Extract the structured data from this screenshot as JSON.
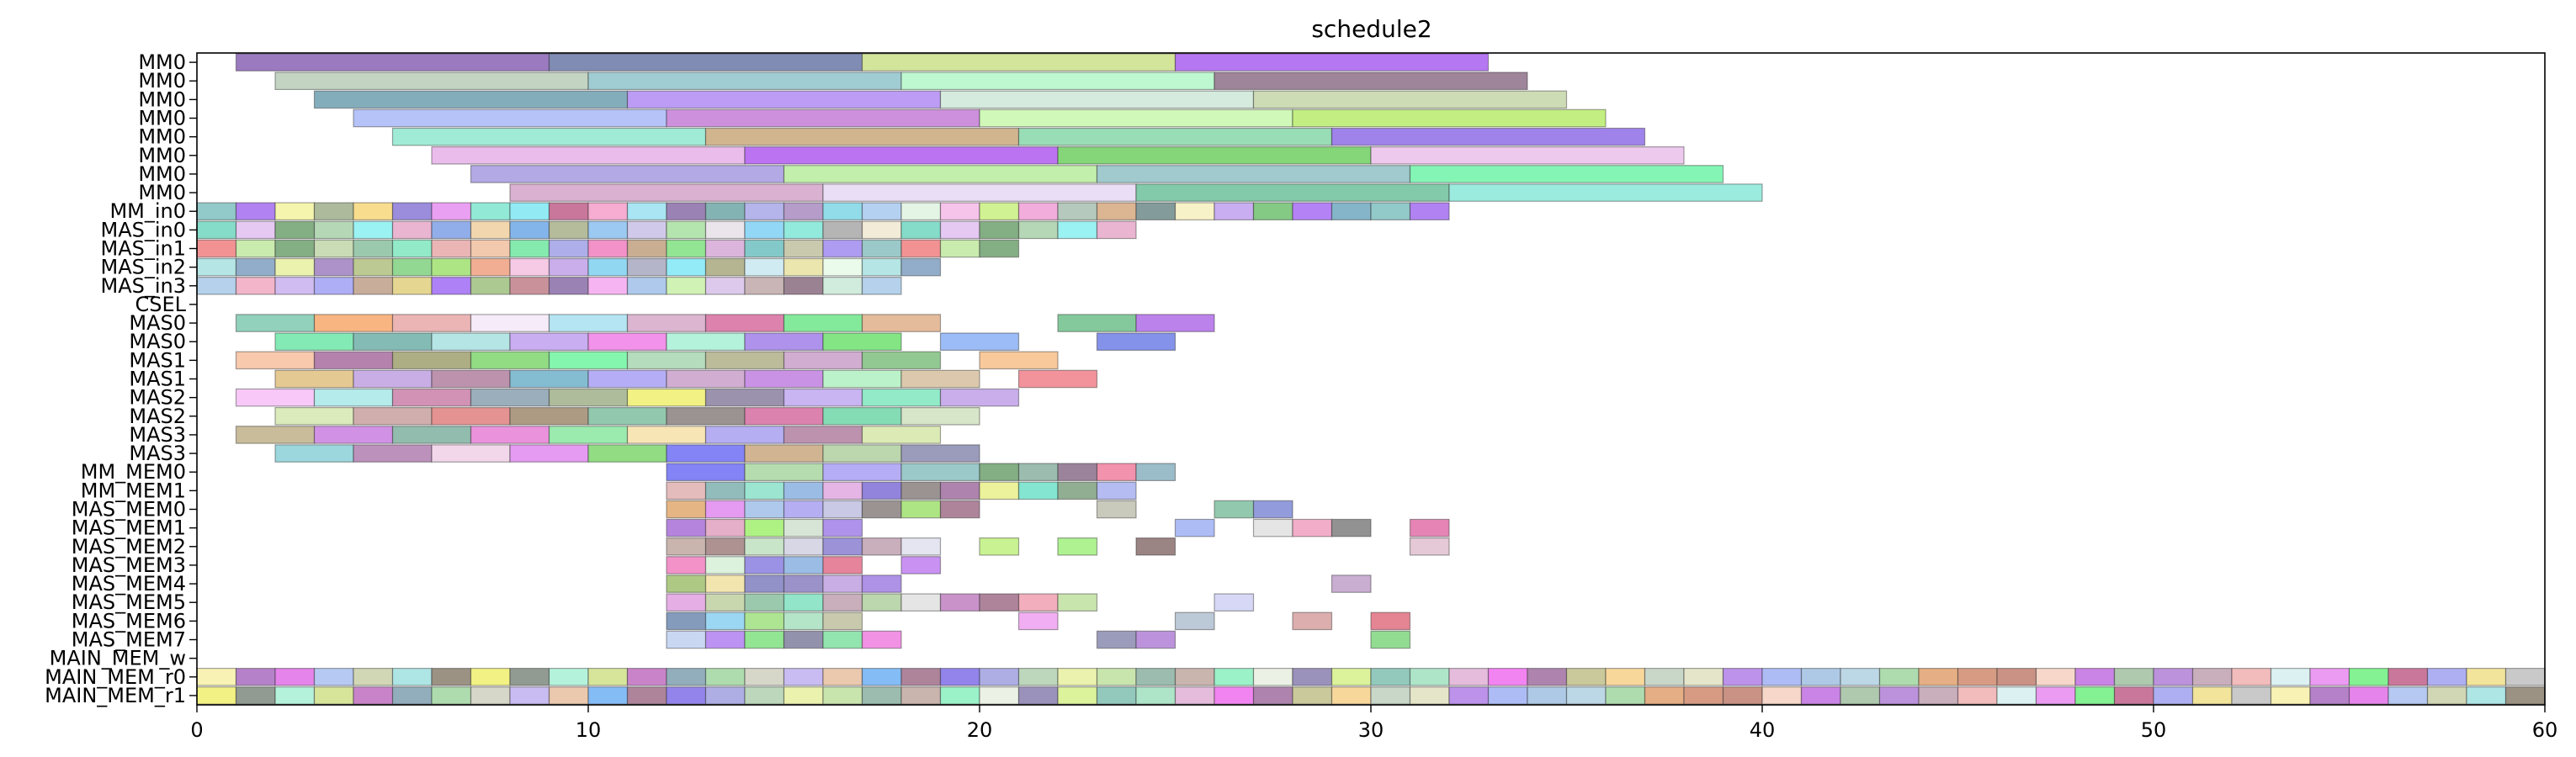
{
  "chart_data": {
    "type": "gantt",
    "title": "schedule2",
    "xlabel": "",
    "ylabel": "",
    "xlim": [
      0,
      60
    ],
    "x_ticks": [
      0,
      10,
      20,
      30,
      40,
      50,
      60
    ],
    "grid": false,
    "legend": "none",
    "rows": [
      "MM0",
      "MM0",
      "MM0",
      "MM0",
      "MM0",
      "MM0",
      "MM0",
      "MM0",
      "MM_in0",
      "MAS_in0",
      "MAS_in1",
      "MAS_in2",
      "MAS_in3",
      "CSEL",
      "MAS0",
      "MAS0",
      "MAS1",
      "MAS1",
      "MAS2",
      "MAS2",
      "MAS3",
      "MAS3",
      "MM_MEM0",
      "MM_MEM1",
      "MAS_MEM0",
      "MAS_MEM1",
      "MAS_MEM2",
      "MAS_MEM3",
      "MAS_MEM4",
      "MAS_MEM5",
      "MAS_MEM6",
      "MAS_MEM7",
      "MAIN_MEM_w",
      "MAIN_MEM_r0",
      "MAIN_MEM_r1"
    ],
    "tasks": [
      {
        "row": 0,
        "start": 1,
        "end": 9,
        "color": "#8a63b5"
      },
      {
        "row": 0,
        "start": 9,
        "end": 17,
        "color": "#6b78a8"
      },
      {
        "row": 0,
        "start": 17,
        "end": 25,
        "color": "#cbe08a"
      },
      {
        "row": 0,
        "start": 25,
        "end": 33,
        "color": "#a95ff0"
      },
      {
        "row": 1,
        "start": 2,
        "end": 10,
        "color": "#b8cdb8"
      },
      {
        "row": 1,
        "start": 10,
        "end": 18,
        "color": "#8fc4cc"
      },
      {
        "row": 1,
        "start": 18,
        "end": 26,
        "color": "#b1f7c8"
      },
      {
        "row": 1,
        "start": 26,
        "end": 34,
        "color": "#8e7088"
      },
      {
        "row": 2,
        "start": 3,
        "end": 11,
        "color": "#6f9fb0"
      },
      {
        "row": 2,
        "start": 11,
        "end": 19,
        "color": "#b08bf2"
      },
      {
        "row": 2,
        "start": 19,
        "end": 27,
        "color": "#cce8d8"
      },
      {
        "row": 2,
        "start": 27,
        "end": 35,
        "color": "#c5d6a8"
      },
      {
        "row": 3,
        "start": 4,
        "end": 12,
        "color": "#a8b9f7"
      },
      {
        "row": 3,
        "start": 12,
        "end": 20,
        "color": "#c47cd6"
      },
      {
        "row": 3,
        "start": 20,
        "end": 28,
        "color": "#c8f7ac"
      },
      {
        "row": 3,
        "start": 28,
        "end": 36,
        "color": "#b8eb6b"
      },
      {
        "row": 4,
        "start": 5,
        "end": 13,
        "color": "#8ee8cf"
      },
      {
        "row": 4,
        "start": 13,
        "end": 21,
        "color": "#c9a87b"
      },
      {
        "row": 4,
        "start": 21,
        "end": 29,
        "color": "#86d7a8"
      },
      {
        "row": 4,
        "start": 29,
        "end": 37,
        "color": "#8f6ce8"
      },
      {
        "row": 5,
        "start": 6,
        "end": 14,
        "color": "#e6b0e8"
      },
      {
        "row": 5,
        "start": 14,
        "end": 22,
        "color": "#b05af0"
      },
      {
        "row": 5,
        "start": 22,
        "end": 30,
        "color": "#6fcf60"
      },
      {
        "row": 5,
        "start": 30,
        "end": 38,
        "color": "#ebbfeb"
      },
      {
        "row": 6,
        "start": 7,
        "end": 15,
        "color": "#a59ae0"
      },
      {
        "row": 6,
        "start": 15,
        "end": 23,
        "color": "#b7ec9c"
      },
      {
        "row": 6,
        "start": 23,
        "end": 31,
        "color": "#8fc1c6"
      },
      {
        "row": 6,
        "start": 31,
        "end": 39,
        "color": "#6ff3a8"
      },
      {
        "row": 7,
        "start": 8,
        "end": 16,
        "color": "#d4a3c9"
      },
      {
        "row": 7,
        "start": 16,
        "end": 24,
        "color": "#e6d8f5"
      },
      {
        "row": 7,
        "start": 24,
        "end": 32,
        "color": "#6cc19a"
      },
      {
        "row": 7,
        "start": 32,
        "end": 40,
        "color": "#8ae8d8"
      }
    ],
    "dense_row_palettes": [
      [
        "#7fc0c0",
        "#a36cf0",
        "#f3f3a0",
        "#9fae8a",
        "#f7d77a",
        "#8a78d6",
        "#e68ff0",
        "#7fe6cf",
        "#7fe6f3",
        "#c05f8a",
        "#f59fc9",
        "#9ae0f0",
        "#8a6ca8",
        "#6fa6a6",
        "#a8a8e8",
        "#a88bc0",
        "#7fd6e6",
        "#a8c9f0",
        "#e0f3e0",
        "#f5b8e8",
        "#c9f07f",
        "#f09fd6",
        "#a8c0b0",
        "#d6a87f",
        "#6f8a8a",
        "#f7f0c0",
        "#c0a0f0",
        "#6fc06f",
        "#a86cf5",
        "#6fa8c0"
      ],
      [
        "#6fd6c0",
        "#e0c0f0",
        "#6fa06f",
        "#a8d0a8",
        "#8af0f0",
        "#e6a8c9",
        "#7fa0e6",
        "#f0d0a0",
        "#6fa8e6",
        "#a8b08a",
        "#8ac0f0",
        "#c9c0e6",
        "#a8e0a0",
        "#e6e0e8",
        "#7fd0f5",
        "#7fe6d6",
        "#a8a8a8",
        "#f0e8d0"
      ],
      [
        "#f07f7f",
        "#c0e8a0",
        "#6fa06f",
        "#c0d6a8",
        "#8ac0a0",
        "#7fe6c0",
        "#e8a8a8",
        "#f0c09f",
        "#6fe6a0",
        "#a0a0e8",
        "#f07fc0",
        "#c0a07f",
        "#7fe07f",
        "#d6a8d6",
        "#6fc0c0",
        "#c0c0a0",
        "#a08af0",
        "#8ac0c0"
      ],
      [
        "#a8e0e0",
        "#7f9fc0",
        "#e8f0a0",
        "#9f7fc0",
        "#b0c07f",
        "#7fd07f",
        "#a0e06f",
        "#f0a07f",
        "#f5c0e0",
        "#c0a0e8",
        "#7fd0f0",
        "#a8a8c0",
        "#7fe8f5",
        "#a8a87f",
        "#c9e8f0",
        "#e8e0a0",
        "#e8fae8"
      ],
      [
        "#a8c9e8",
        "#f0a8c0",
        "#c9b0f0",
        "#a0a0f5",
        "#c09f8a",
        "#e0d07f",
        "#a06cf5",
        "#9fc07f",
        "#c07f8a",
        "#8a6ca8",
        "#f5a8f0",
        "#a0c0e8",
        "#c9f0a8",
        "#d6c0e8",
        "#c0a8a8",
        "#8a6c7f",
        "#c9e8d6"
      ]
    ],
    "row_bars": {
      "14": [
        [
          1,
          3,
          "#7fc9b0"
        ],
        [
          3,
          5,
          "#f7a86c"
        ],
        [
          5,
          7,
          "#e8a8a8"
        ],
        [
          7,
          9,
          "#f5e8f7"
        ],
        [
          9,
          11,
          "#a8e0f0"
        ],
        [
          11,
          13,
          "#d6a8c9"
        ],
        [
          13,
          15,
          "#d66c9f"
        ],
        [
          15,
          17,
          "#6fe68a"
        ],
        [
          17,
          19,
          "#e0b08a"
        ],
        [
          22,
          24,
          "#6fc08a"
        ],
        [
          24,
          26,
          "#b06ce8"
        ]
      ],
      "15": [
        [
          2,
          4,
          "#6fe6a8"
        ],
        [
          4,
          6,
          "#6fb0a8"
        ],
        [
          6,
          8,
          "#a8e0e0"
        ],
        [
          8,
          10,
          "#c0a0f0"
        ],
        [
          10,
          12,
          "#f07fe6"
        ],
        [
          12,
          14,
          "#a8f0d6"
        ],
        [
          14,
          16,
          "#a07fe8"
        ],
        [
          16,
          18,
          "#6fe06f"
        ],
        [
          19,
          21,
          "#8ab0f5"
        ],
        [
          23,
          25,
          "#6f7fe6"
        ]
      ],
      "16": [
        [
          1,
          3,
          "#f7c09f"
        ],
        [
          3,
          5,
          "#a86ca0"
        ],
        [
          5,
          7,
          "#a0a06f"
        ],
        [
          7,
          9,
          "#7fd66f"
        ],
        [
          9,
          11,
          "#6ff5a0"
        ],
        [
          11,
          13,
          "#a8d6b0"
        ],
        [
          13,
          15,
          "#b0b08a"
        ],
        [
          15,
          17,
          "#c9a0c9"
        ],
        [
          17,
          19,
          "#7fc07f"
        ],
        [
          20,
          22,
          "#f7c08a"
        ]
      ],
      "17": [
        [
          2,
          4,
          "#e0c07f"
        ],
        [
          4,
          6,
          "#c0a0e0"
        ],
        [
          6,
          8,
          "#b07f9f"
        ],
        [
          8,
          10,
          "#6fb0c9"
        ],
        [
          10,
          12,
          "#a8a0f5"
        ],
        [
          12,
          14,
          "#c9a0c9"
        ],
        [
          14,
          16,
          "#c07fe0"
        ],
        [
          16,
          18,
          "#b0f0c0"
        ],
        [
          18,
          20,
          "#d6c09f"
        ],
        [
          21,
          23,
          "#f07f8a"
        ]
      ],
      "18": [
        [
          1,
          3,
          "#f7c0f7"
        ],
        [
          3,
          5,
          "#a8e8e8"
        ],
        [
          5,
          7,
          "#c97fa8"
        ],
        [
          7,
          9,
          "#8aa0b0"
        ],
        [
          9,
          11,
          "#a0b08a"
        ],
        [
          11,
          13,
          "#f0f06f"
        ],
        [
          13,
          15,
          "#8a7f9f"
        ],
        [
          15,
          17,
          "#c0a8f0"
        ],
        [
          17,
          19,
          "#7fe6c0"
        ],
        [
          19,
          21,
          "#c0a0e8"
        ]
      ],
      "19": [
        [
          2,
          4,
          "#d6e8b0"
        ],
        [
          4,
          6,
          "#c9a0a0"
        ],
        [
          6,
          8,
          "#e07f7f"
        ],
        [
          8,
          10,
          "#a08a6f"
        ],
        [
          10,
          12,
          "#7fc0a0"
        ],
        [
          12,
          14,
          "#8a7f7f"
        ],
        [
          14,
          16,
          "#d66ca0"
        ],
        [
          16,
          18,
          "#6fd6a8"
        ],
        [
          18,
          20,
          "#d0e0c0"
        ]
      ],
      "20": [
        [
          1,
          3,
          "#c0b08a"
        ],
        [
          3,
          5,
          "#c97fe0"
        ],
        [
          5,
          7,
          "#7fb0a0"
        ],
        [
          7,
          9,
          "#e87fd6"
        ],
        [
          9,
          11,
          "#8ae8a0"
        ],
        [
          11,
          13,
          "#f7e0a8"
        ],
        [
          13,
          15,
          "#a8a0f0"
        ],
        [
          15,
          17,
          "#b07fa0"
        ],
        [
          17,
          19,
          "#d6e8a8"
        ]
      ],
      "21": [
        [
          2,
          4,
          "#8ad0d6"
        ],
        [
          4,
          6,
          "#b07fb0"
        ],
        [
          6,
          8,
          "#f0d0e8"
        ],
        [
          8,
          10,
          "#e08af0"
        ],
        [
          10,
          12,
          "#7fd66f"
        ],
        [
          12,
          14,
          "#6f6ff5"
        ],
        [
          14,
          16,
          "#c9a87f"
        ],
        [
          16,
          18,
          "#b0d0a0"
        ],
        [
          18,
          20,
          "#8a8ab0"
        ]
      ],
      "22": [
        [
          12,
          14,
          "#6f6ff5"
        ],
        [
          14,
          16,
          "#a8d6a0"
        ],
        [
          16,
          18,
          "#a8a0f5"
        ],
        [
          18,
          20,
          "#8ac0c0"
        ],
        [
          20,
          21,
          "#6fa06f"
        ],
        [
          21,
          22,
          "#8ab0a0"
        ],
        [
          22,
          23,
          "#8a6f8a"
        ],
        [
          23,
          24,
          "#f07f9f"
        ],
        [
          24,
          25,
          "#8ab0c0"
        ]
      ],
      "23": [
        [
          12,
          13,
          "#e0b0b0"
        ],
        [
          13,
          14,
          "#7fb0b0"
        ],
        [
          14,
          15,
          "#8ae0c9"
        ],
        [
          15,
          16,
          "#8ab0e0"
        ],
        [
          16,
          17,
          "#e0a8e0"
        ],
        [
          17,
          18,
          "#7f6fd6"
        ],
        [
          18,
          19,
          "#8a7f7f"
        ],
        [
          19,
          20,
          "#a06fa0"
        ],
        [
          20,
          21,
          "#e8f08a"
        ],
        [
          21,
          22,
          "#6fe0c9"
        ],
        [
          22,
          23,
          "#7fa07f"
        ],
        [
          23,
          24,
          "#a8b0f0"
        ]
      ],
      "24": [
        [
          12,
          13,
          "#e0a86f"
        ],
        [
          13,
          14,
          "#e08af0"
        ],
        [
          14,
          15,
          "#a0c0e8"
        ],
        [
          15,
          16,
          "#a8a0f0"
        ],
        [
          16,
          17,
          "#c0c0e0"
        ],
        [
          17,
          18,
          "#8a7f7f"
        ],
        [
          18,
          19,
          "#a0e06f"
        ],
        [
          19,
          20,
          "#a06f8a"
        ],
        [
          23,
          24,
          "#c0c0b0"
        ],
        [
          26,
          27,
          "#7fc0a0"
        ],
        [
          27,
          28,
          "#7f8ad6"
        ]
      ],
      "25": [
        [
          12,
          13,
          "#a86fd6"
        ],
        [
          13,
          14,
          "#e0a0c0"
        ],
        [
          14,
          15,
          "#a0f06f"
        ],
        [
          15,
          16,
          "#d0e0d0"
        ],
        [
          16,
          17,
          "#a07fe8"
        ],
        [
          25,
          26,
          "#a0b0f5"
        ],
        [
          27,
          28,
          "#e0e0e0"
        ],
        [
          28,
          29,
          "#f0a0c0"
        ],
        [
          29,
          30,
          "#7f7f7f"
        ],
        [
          31,
          32,
          "#e06fa8"
        ]
      ],
      "26": [
        [
          12,
          13,
          "#c0a8a0"
        ],
        [
          13,
          14,
          "#a07f7f"
        ],
        [
          14,
          15,
          "#c0e0c0"
        ],
        [
          15,
          16,
          "#d0d0e0"
        ],
        [
          16,
          17,
          "#8a7fd0"
        ],
        [
          17,
          18,
          "#c0a0b0"
        ],
        [
          18,
          19,
          "#e0e0f0"
        ],
        [
          20,
          21,
          "#c0f07f"
        ],
        [
          22,
          23,
          "#a0f07f"
        ],
        [
          24,
          25,
          "#8a6f6f"
        ],
        [
          31,
          32,
          "#e0c0d0"
        ]
      ],
      "27": [
        [
          12,
          13,
          "#f07fc0"
        ],
        [
          13,
          14,
          "#d6f0d6"
        ],
        [
          14,
          15,
          "#8a7fe0"
        ],
        [
          15,
          16,
          "#8ab0e0"
        ],
        [
          16,
          17,
          "#e06f8a"
        ],
        [
          18,
          19,
          "#c07ff0"
        ]
      ],
      "28": [
        [
          12,
          13,
          "#a0c06f"
        ],
        [
          13,
          14,
          "#f0e0a0"
        ],
        [
          14,
          15,
          "#7f7fc0"
        ],
        [
          15,
          16,
          "#8a7fc0"
        ],
        [
          16,
          17,
          "#c0a0e0"
        ],
        [
          17,
          18,
          "#a07fe0"
        ],
        [
          29,
          30,
          "#c0a0c9"
        ]
      ],
      "29": [
        [
          12,
          13,
          "#e0a0e0"
        ],
        [
          13,
          14,
          "#c0d0a0"
        ],
        [
          14,
          15,
          "#8ac0a0"
        ],
        [
          15,
          16,
          "#7fe0c0"
        ],
        [
          16,
          17,
          "#c0a0b0"
        ],
        [
          17,
          18,
          "#b0d0a0"
        ],
        [
          18,
          19,
          "#e0e0e0"
        ],
        [
          19,
          20,
          "#c07fc0"
        ],
        [
          20,
          21,
          "#a06f8a"
        ],
        [
          21,
          22,
          "#f0a0b0"
        ],
        [
          22,
          23,
          "#c0e0a0"
        ],
        [
          26,
          27,
          "#d0d0f5"
        ]
      ],
      "30": [
        [
          12,
          13,
          "#6f8ab0"
        ],
        [
          13,
          14,
          "#8ad0f0"
        ],
        [
          14,
          15,
          "#a0e07f"
        ],
        [
          15,
          16,
          "#a8e0c0"
        ],
        [
          16,
          17,
          "#c0c0a0"
        ],
        [
          21,
          22,
          "#f0a0f0"
        ],
        [
          25,
          26,
          "#b0c0d0"
        ],
        [
          28,
          29,
          "#d6a0a0"
        ],
        [
          30,
          31,
          "#e06f7f"
        ]
      ],
      "31": [
        [
          12,
          13,
          "#c0d0f0"
        ],
        [
          13,
          14,
          "#b07ff0"
        ],
        [
          14,
          15,
          "#7fe07f"
        ],
        [
          15,
          16,
          "#7f7f9f"
        ],
        [
          16,
          17,
          "#7fe0a0"
        ],
        [
          17,
          18,
          "#f07fe0"
        ],
        [
          23,
          24,
          "#8a8ab0"
        ],
        [
          24,
          25,
          "#b07fd6"
        ],
        [
          30,
          31,
          "#7fd67f"
        ]
      ]
    },
    "dense_rows": {
      "8": {
        "start": 0,
        "end": 32
      },
      "9": {
        "start": 0,
        "end": 24
      },
      "10": {
        "start": 0,
        "end": 21
      },
      "11": {
        "start": 0,
        "end": 19
      },
      "12": {
        "start": 0,
        "end": 18
      },
      "33": {
        "start": 0,
        "end": 60
      },
      "34": {
        "start": 0,
        "end": 60
      }
    }
  }
}
